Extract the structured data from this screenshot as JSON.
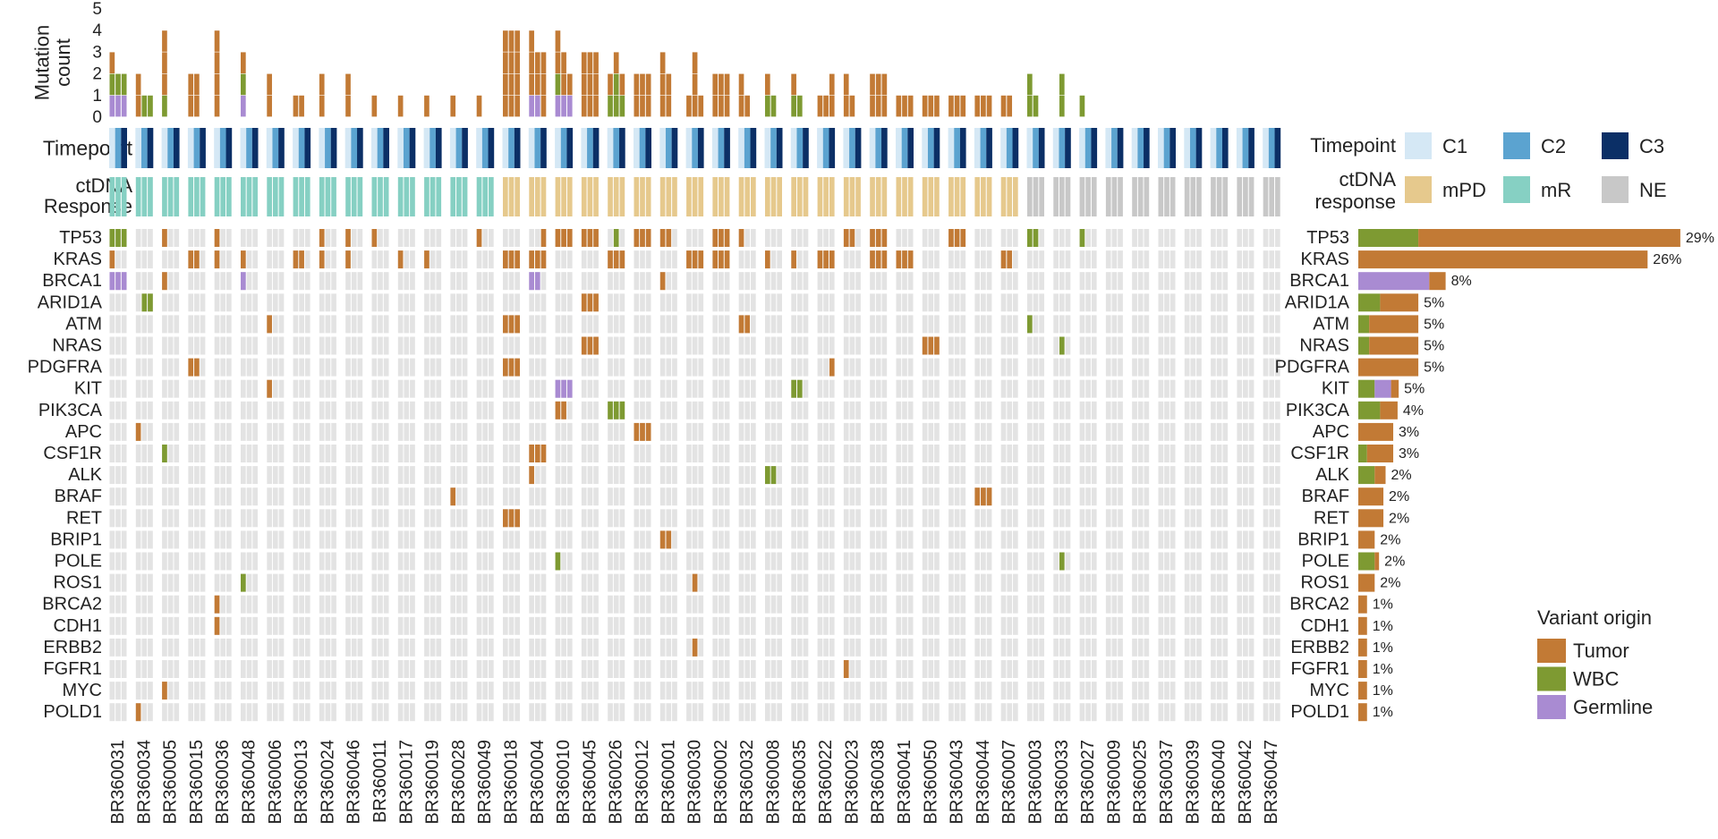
{
  "chart_data": {
    "type": "bar",
    "patients": [
      "BR360031",
      "BR360034",
      "BR360005",
      "BR360015",
      "BR360036",
      "BR360048",
      "BR360006",
      "BR360013",
      "BR360024",
      "BR360046",
      "BR360011",
      "BR360017",
      "BR360019",
      "BR360028",
      "BR360049",
      "BR360018",
      "BR360004",
      "BR360010",
      "BR360045",
      "BR360026",
      "BR360012",
      "BR360001",
      "BR360030",
      "BR360002",
      "BR360032",
      "BR360008",
      "BR360035",
      "BR360022",
      "BR360023",
      "BR360038",
      "BR360041",
      "BR360050",
      "BR360043",
      "BR360044",
      "BR360007",
      "BR360003",
      "BR360033",
      "BR360027",
      "BR360009",
      "BR360025",
      "BR360037",
      "BR360039",
      "BR360040",
      "BR360042",
      "BR360047"
    ],
    "timepoints": [
      "C1",
      "C2",
      "C3"
    ],
    "timepoint_panel_label": "Timepoint",
    "response_panel_label": "ctDNA Response",
    "ylabel": "Mutation count",
    "ylim": [
      0,
      5
    ],
    "yticks": [
      "0",
      "1",
      "2",
      "3",
      "4",
      "5"
    ],
    "response_groups": [
      {
        "response": "mR",
        "patient_count": 15
      },
      {
        "response": "mPD",
        "patient_count": 20
      },
      {
        "response": "NE",
        "patient_count": 10
      }
    ],
    "genes": [
      "TP53",
      "KRAS",
      "BRCA1",
      "ARID1A",
      "ATM",
      "NRAS",
      "PDGFRA",
      "KIT",
      "PIK3CA",
      "APC",
      "CSF1R",
      "ALK",
      "BRAF",
      "RET",
      "BRIP1",
      "POLE",
      "ROS1",
      "BRCA2",
      "CDH1",
      "ERBB2",
      "FGFR1",
      "MYC",
      "POLD1"
    ],
    "gene_frequency": {
      "percent_labels": [
        "29%",
        "26%",
        "8%",
        "5%",
        "5%",
        "5%",
        "5%",
        "5%",
        "4%",
        "3%",
        "3%",
        "2%",
        "2%",
        "2%",
        "2%",
        "2%",
        "2%",
        "1%",
        "1%",
        "1%",
        "1%",
        "1%",
        "1%"
      ],
      "series": [
        {
          "name": "WBC",
          "values": [
            5.5,
            0,
            0,
            2.0,
            1.0,
            1.0,
            0,
            1.5,
            2.0,
            0,
            0.8,
            1.5,
            0,
            0,
            0,
            1.5,
            0,
            0,
            0,
            0,
            0,
            0,
            0
          ]
        },
        {
          "name": "Germline",
          "values": [
            0,
            0,
            6.5,
            0,
            0,
            0,
            0,
            1.5,
            0,
            0,
            0,
            0,
            0,
            0,
            0,
            0,
            0,
            0,
            0,
            0,
            0,
            0,
            0
          ]
        },
        {
          "name": "Tumor",
          "values": [
            24.0,
            26.5,
            1.5,
            3.5,
            4.5,
            4.5,
            5.5,
            0.7,
            1.6,
            3.2,
            2.4,
            1.0,
            2.3,
            2.3,
            1.5,
            0.4,
            1.5,
            0.8,
            0.8,
            0.8,
            0.8,
            0.8,
            0.8
          ]
        }
      ]
    },
    "legend": {
      "timepoint_title": "Timepoint",
      "response_title": "ctDNA response",
      "variant_title": "Variant origin",
      "timepoint_items": [
        {
          "label": "C1",
          "color": "#d5e8f5"
        },
        {
          "label": "C2",
          "color": "#5ba3d0"
        },
        {
          "label": "C3",
          "color": "#0b2f66"
        }
      ],
      "response_items": [
        {
          "label": "mPD",
          "color": "#e6c98d"
        },
        {
          "label": "mR",
          "color": "#86d0c3"
        },
        {
          "label": "NE",
          "color": "#c8c8c8"
        }
      ],
      "variant_items": [
        {
          "label": "Tumor",
          "color": "#c27a35"
        },
        {
          "label": "WBC",
          "color": "#7e9a32"
        },
        {
          "label": "Germline",
          "color": "#a98bd2"
        }
      ]
    },
    "colors": {
      "empty": "#e3e3e3",
      "tumor": "#c27a35",
      "wbc": "#7e9a32",
      "germline": "#a98bd2",
      "c1": "#d5e8f5",
      "c2": "#5ba3d0",
      "c3": "#0b2f66",
      "mR": "#86d0c3",
      "mPD": "#e6c98d",
      "NE": "#c8c8c8"
    },
    "mutations": [
      [
        0,
        "TP53",
        "W",
        [
          1,
          1,
          1
        ]
      ],
      [
        0,
        "KRAS",
        "T",
        [
          1,
          0,
          0
        ]
      ],
      [
        0,
        "BRCA1",
        "G",
        [
          1,
          1,
          1
        ]
      ],
      [
        1,
        "ARID1A",
        "W",
        [
          0,
          1,
          1
        ]
      ],
      [
        1,
        "APC",
        "T",
        [
          1,
          0,
          0
        ]
      ],
      [
        1,
        "POLD1",
        "T",
        [
          1,
          0,
          0
        ]
      ],
      [
        2,
        "TP53",
        "T",
        [
          1,
          0,
          0
        ]
      ],
      [
        2,
        "BRCA1",
        "T",
        [
          1,
          0,
          0
        ]
      ],
      [
        2,
        "CSF1R",
        "W",
        [
          1,
          0,
          0
        ]
      ],
      [
        2,
        "MYC",
        "T",
        [
          1,
          0,
          0
        ]
      ],
      [
        3,
        "KRAS",
        "T",
        [
          1,
          1,
          0
        ]
      ],
      [
        3,
        "PDGFRA",
        "T",
        [
          1,
          1,
          0
        ]
      ],
      [
        4,
        "TP53",
        "T",
        [
          1,
          0,
          0
        ]
      ],
      [
        4,
        "KRAS",
        "T",
        [
          1,
          0,
          0
        ]
      ],
      [
        4,
        "BRCA2",
        "T",
        [
          1,
          0,
          0
        ]
      ],
      [
        4,
        "CDH1",
        "T",
        [
          1,
          0,
          0
        ]
      ],
      [
        5,
        "KRAS",
        "T",
        [
          1,
          0,
          0
        ]
      ],
      [
        5,
        "BRCA1",
        "G",
        [
          1,
          0,
          0
        ]
      ],
      [
        5,
        "ROS1",
        "W",
        [
          1,
          0,
          0
        ]
      ],
      [
        6,
        "ATM",
        "T",
        [
          1,
          0,
          0
        ]
      ],
      [
        6,
        "KIT",
        "T",
        [
          1,
          0,
          0
        ]
      ],
      [
        7,
        "KRAS",
        "T",
        [
          1,
          1,
          0
        ]
      ],
      [
        8,
        "TP53",
        "T",
        [
          1,
          0,
          0
        ]
      ],
      [
        8,
        "KRAS",
        "T",
        [
          1,
          0,
          0
        ]
      ],
      [
        9,
        "TP53",
        "T",
        [
          1,
          0,
          0
        ]
      ],
      [
        9,
        "KRAS",
        "T",
        [
          1,
          0,
          0
        ]
      ],
      [
        10,
        "TP53",
        "T",
        [
          1,
          0,
          0
        ]
      ],
      [
        11,
        "KRAS",
        "T",
        [
          1,
          0,
          0
        ]
      ],
      [
        12,
        "KRAS",
        "T",
        [
          1,
          0,
          0
        ]
      ],
      [
        13,
        "BRAF",
        "T",
        [
          1,
          0,
          0
        ]
      ],
      [
        14,
        "TP53",
        "T",
        [
          1,
          0,
          0
        ]
      ],
      [
        15,
        "KRAS",
        "T",
        [
          1,
          1,
          1
        ]
      ],
      [
        15,
        "ATM",
        "T",
        [
          1,
          1,
          1
        ]
      ],
      [
        15,
        "PDGFRA",
        "T",
        [
          1,
          1,
          1
        ]
      ],
      [
        15,
        "RET",
        "T",
        [
          1,
          1,
          1
        ]
      ],
      [
        16,
        "TP53",
        "T",
        [
          0,
          0,
          1
        ]
      ],
      [
        16,
        "KRAS",
        "T",
        [
          1,
          1,
          1
        ]
      ],
      [
        16,
        "BRCA1",
        "G",
        [
          1,
          1,
          0
        ]
      ],
      [
        16,
        "CSF1R",
        "T",
        [
          1,
          1,
          1
        ]
      ],
      [
        16,
        "ALK",
        "T",
        [
          1,
          0,
          0
        ]
      ],
      [
        17,
        "TP53",
        "T",
        [
          1,
          1,
          1
        ]
      ],
      [
        17,
        "KIT",
        "G",
        [
          1,
          1,
          1
        ]
      ],
      [
        17,
        "PIK3CA",
        "T",
        [
          1,
          1,
          0
        ]
      ],
      [
        17,
        "POLE",
        "W",
        [
          1,
          0,
          0
        ]
      ],
      [
        18,
        "TP53",
        "T",
        [
          1,
          1,
          1
        ]
      ],
      [
        18,
        "ARID1A",
        "T",
        [
          1,
          1,
          1
        ]
      ],
      [
        18,
        "NRAS",
        "T",
        [
          1,
          1,
          1
        ]
      ],
      [
        19,
        "TP53",
        "W",
        [
          0,
          1,
          0
        ]
      ],
      [
        19,
        "KRAS",
        "T",
        [
          1,
          1,
          1
        ]
      ],
      [
        19,
        "PIK3CA",
        "W",
        [
          1,
          1,
          1
        ]
      ],
      [
        20,
        "TP53",
        "T",
        [
          1,
          1,
          1
        ]
      ],
      [
        20,
        "APC",
        "T",
        [
          1,
          1,
          1
        ]
      ],
      [
        21,
        "TP53",
        "T",
        [
          1,
          1,
          0
        ]
      ],
      [
        21,
        "BRCA1",
        "T",
        [
          1,
          0,
          0
        ]
      ],
      [
        21,
        "BRIP1",
        "T",
        [
          1,
          1,
          0
        ]
      ],
      [
        22,
        "KRAS",
        "T",
        [
          1,
          1,
          1
        ]
      ],
      [
        22,
        "ROS1",
        "T",
        [
          0,
          1,
          0
        ]
      ],
      [
        22,
        "ERBB2",
        "T",
        [
          0,
          1,
          0
        ]
      ],
      [
        23,
        "TP53",
        "T",
        [
          1,
          1,
          1
        ]
      ],
      [
        23,
        "KRAS",
        "T",
        [
          1,
          1,
          1
        ]
      ],
      [
        24,
        "TP53",
        "T",
        [
          1,
          0,
          0
        ]
      ],
      [
        24,
        "ATM",
        "T",
        [
          1,
          1,
          0
        ]
      ],
      [
        25,
        "KRAS",
        "T",
        [
          1,
          0,
          0
        ]
      ],
      [
        25,
        "ALK",
        "W",
        [
          1,
          1,
          0
        ]
      ],
      [
        26,
        "KRAS",
        "T",
        [
          1,
          0,
          0
        ]
      ],
      [
        26,
        "KIT",
        "W",
        [
          1,
          1,
          0
        ]
      ],
      [
        27,
        "KRAS",
        "T",
        [
          1,
          1,
          1
        ]
      ],
      [
        27,
        "PDGFRA",
        "T",
        [
          0,
          0,
          1
        ]
      ],
      [
        28,
        "TP53",
        "T",
        [
          1,
          1,
          0
        ]
      ],
      [
        28,
        "FGFR1",
        "T",
        [
          1,
          0,
          0
        ]
      ],
      [
        29,
        "TP53",
        "T",
        [
          1,
          1,
          1
        ]
      ],
      [
        29,
        "KRAS",
        "T",
        [
          1,
          1,
          1
        ]
      ],
      [
        30,
        "KRAS",
        "T",
        [
          1,
          1,
          1
        ]
      ],
      [
        31,
        "NRAS",
        "T",
        [
          1,
          1,
          1
        ]
      ],
      [
        32,
        "TP53",
        "T",
        [
          1,
          1,
          1
        ]
      ],
      [
        33,
        "BRAF",
        "T",
        [
          1,
          1,
          1
        ]
      ],
      [
        34,
        "KRAS",
        "T",
        [
          1,
          1,
          0
        ]
      ],
      [
        35,
        "TP53",
        "W",
        [
          1,
          1,
          0
        ]
      ],
      [
        35,
        "ATM",
        "W",
        [
          1,
          0,
          0
        ]
      ],
      [
        36,
        "NRAS",
        "W",
        [
          0,
          1,
          0
        ]
      ],
      [
        36,
        "POLE",
        "W",
        [
          0,
          1,
          0
        ]
      ],
      [
        37,
        "TP53",
        "W",
        [
          1,
          0,
          0
        ]
      ]
    ]
  }
}
